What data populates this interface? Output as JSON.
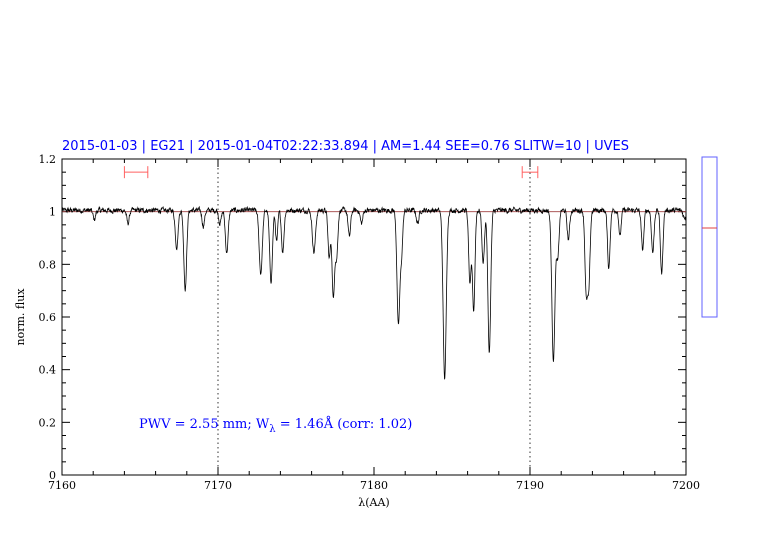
{
  "chart_data": {
    "type": "line",
    "title": "2015-01-03 | EG21 | 2015-01-04T02:22:33.894 | AM=1.44 SEE=0.76 SLITW=10 | UVES",
    "xlabel": "λ(AA)",
    "ylabel": "norm. flux",
    "xlim": [
      7160,
      7200
    ],
    "ylim": [
      0,
      1.2
    ],
    "xticks": [
      "7160",
      "7170",
      "7180",
      "7190",
      "7200"
    ],
    "yticks": [
      "0",
      "0.2",
      "0.4",
      "0.6",
      "0.8",
      "1",
      "1.2"
    ],
    "continuum_level": 1.0,
    "reference_lines_x": [
      7170,
      7190
    ],
    "fit_ranges": [
      [
        7164.0,
        7165.5
      ],
      [
        7189.5,
        7190.5
      ]
    ],
    "annotation": {
      "prefix": "PWV = 2.55 mm; W",
      "subscript": "λ",
      "suffix": " = 1.46Å (corr: 1.02)"
    },
    "side_panel_level": 0.56,
    "series": [
      {
        "name": "spectrum",
        "continuum": 1.005,
        "noise": 0.008,
        "absorption_lines": [
          [
            7162.07,
            0.035,
            0.08
          ],
          [
            7164.23,
            0.05,
            0.08
          ],
          [
            7167.35,
            0.14,
            0.09
          ],
          [
            7167.9,
            0.3,
            0.09
          ],
          [
            7169.06,
            0.06,
            0.08
          ],
          [
            7170.13,
            0.05,
            0.08
          ],
          [
            7170.56,
            0.16,
            0.09
          ],
          [
            7172.74,
            0.24,
            0.1
          ],
          [
            7173.4,
            0.27,
            0.09
          ],
          [
            7173.76,
            0.12,
            0.07
          ],
          [
            7174.15,
            0.16,
            0.08
          ],
          [
            7176.15,
            0.16,
            0.1
          ],
          [
            7177.13,
            0.18,
            0.08
          ],
          [
            7177.39,
            0.33,
            0.08
          ],
          [
            7177.6,
            0.18,
            0.08
          ],
          [
            7178.42,
            0.1,
            0.08
          ],
          [
            7179.2,
            0.05,
            0.08
          ],
          [
            7181.56,
            0.43,
            0.09
          ],
          [
            7181.76,
            0.16,
            0.08
          ],
          [
            7182.8,
            0.05,
            0.08
          ],
          [
            7184.53,
            0.64,
            0.1
          ],
          [
            7186.15,
            0.28,
            0.08
          ],
          [
            7186.39,
            0.38,
            0.08
          ],
          [
            7187.0,
            0.2,
            0.08
          ],
          [
            7187.39,
            0.54,
            0.09
          ],
          [
            7191.5,
            0.57,
            0.1
          ],
          [
            7191.78,
            0.18,
            0.08
          ],
          [
            7192.46,
            0.11,
            0.08
          ],
          [
            7193.6,
            0.3,
            0.08
          ],
          [
            7193.77,
            0.28,
            0.08
          ],
          [
            7195.05,
            0.22,
            0.08
          ],
          [
            7195.77,
            0.1,
            0.07
          ],
          [
            7197.22,
            0.15,
            0.08
          ],
          [
            7197.87,
            0.16,
            0.08
          ],
          [
            7198.44,
            0.24,
            0.08
          ],
          [
            7199.9,
            0.03,
            0.08
          ]
        ]
      }
    ]
  }
}
